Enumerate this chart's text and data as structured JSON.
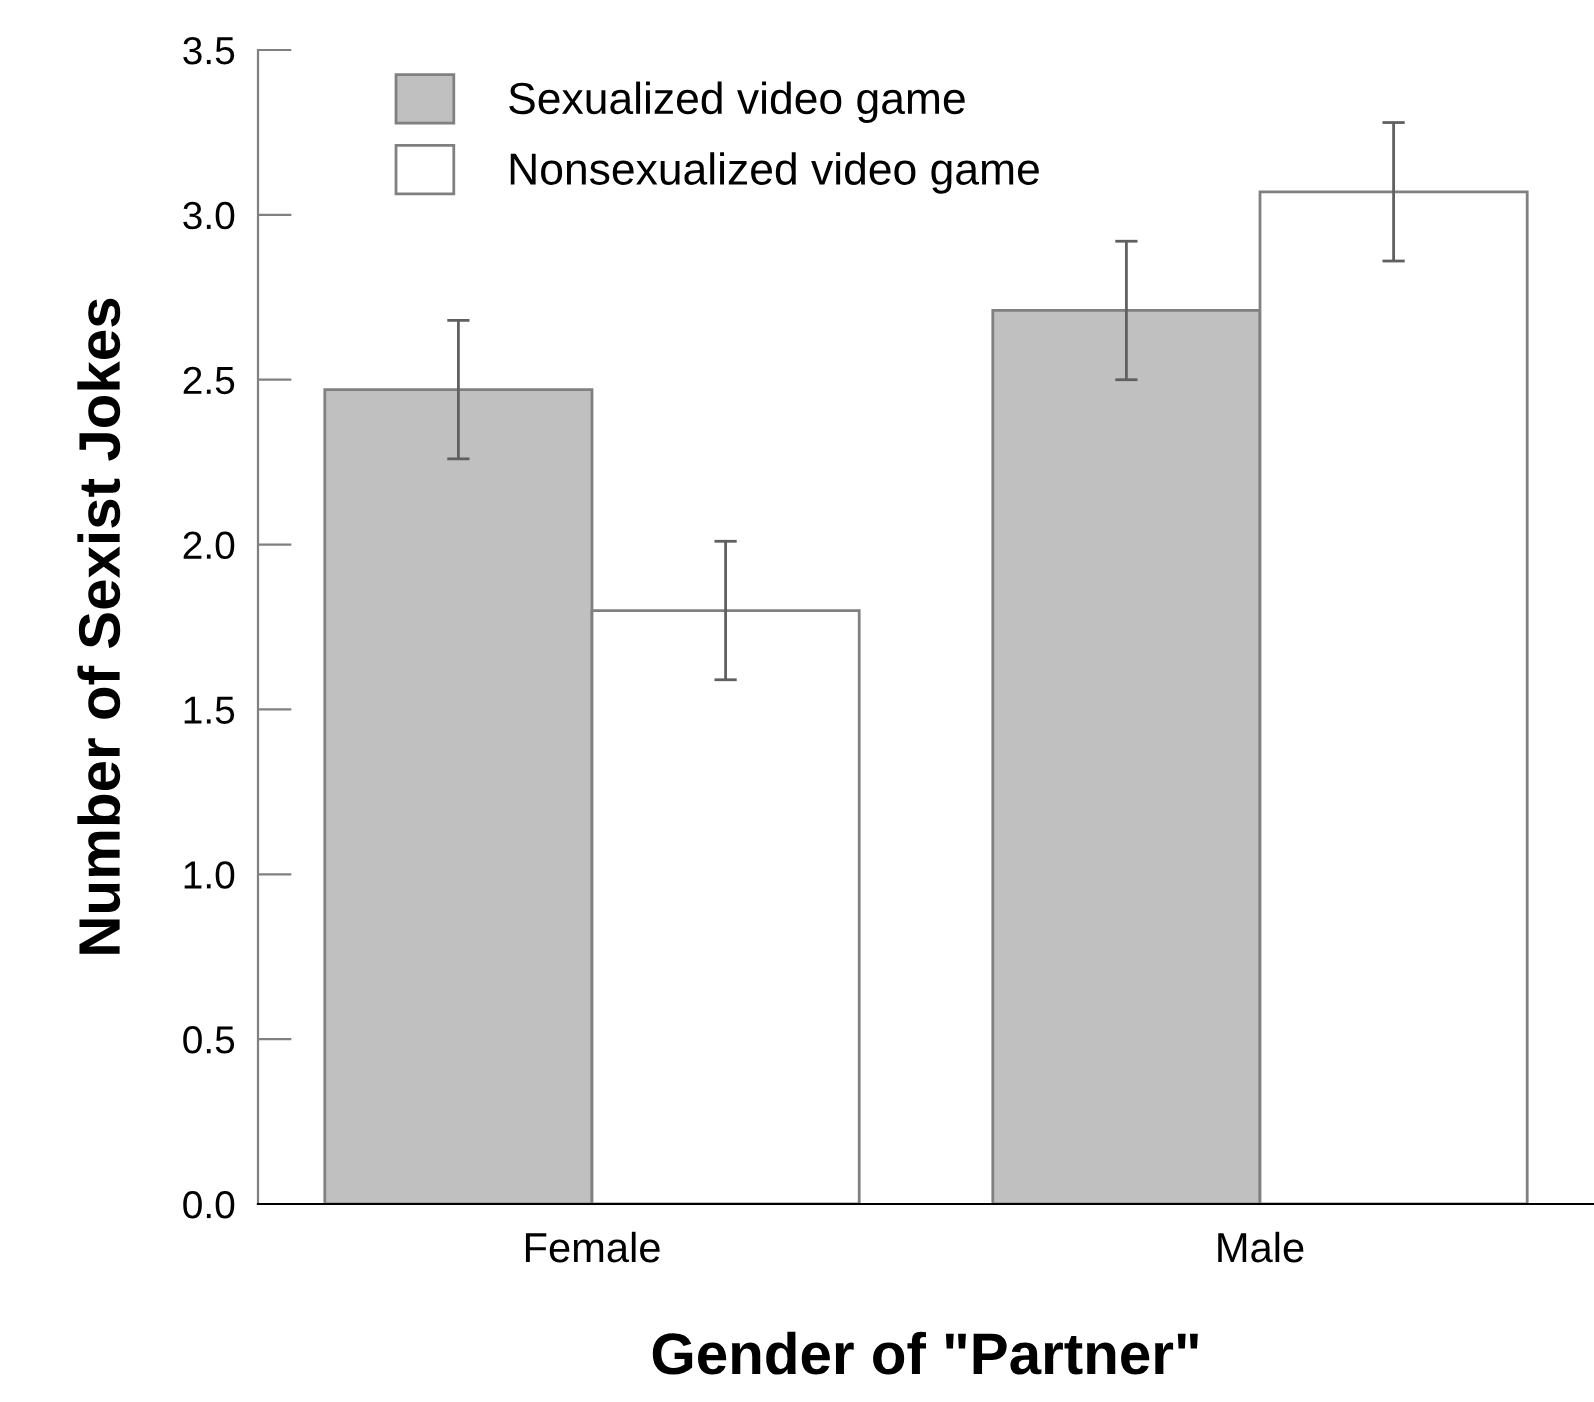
{
  "chart_data": {
    "type": "bar",
    "xlabel": "Gender of \"Partner\"",
    "ylabel": "Number of Sexist Jokes",
    "categories": [
      "Female",
      "Male"
    ],
    "series": [
      {
        "name": "Sexualized video game",
        "color": "#c0c0c0",
        "values": [
          2.47,
          2.71
        ],
        "errors": [
          0.21,
          0.21
        ]
      },
      {
        "name": "Nonsexualized video game",
        "color": "#ffffff",
        "values": [
          1.8,
          3.07
        ],
        "errors": [
          0.21,
          0.21
        ]
      }
    ],
    "ylim": [
      0,
      3.5
    ],
    "yticks": [
      {
        "value": 0,
        "label": "0.0"
      },
      {
        "value": 0.5,
        "label": "0.5"
      },
      {
        "value": 1,
        "label": "1.0"
      },
      {
        "value": 1.5,
        "label": "1.5"
      },
      {
        "value": 2,
        "label": "2.0"
      },
      {
        "value": 2.5,
        "label": "2.5"
      },
      {
        "value": 3,
        "label": "3.0"
      },
      {
        "value": 3.5,
        "label": "3.5"
      }
    ],
    "grid": false,
    "legend": "top left"
  }
}
